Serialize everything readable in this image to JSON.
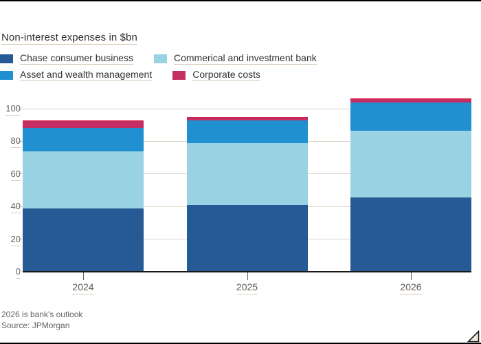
{
  "title": "Non-interest expenses in $bn",
  "legend": [
    {
      "label": "Chase consumer business",
      "color": "#255a94"
    },
    {
      "label": "Commerical and investment bank",
      "color": "#99d3e3"
    },
    {
      "label": "Asset and wealth management",
      "color": "#2190d0"
    },
    {
      "label": "Corporate costs",
      "color": "#c42e63"
    }
  ],
  "footnote": "2026 is bank's outlook",
  "source": "Source: JPMorgan",
  "chart_data": {
    "type": "bar",
    "stacked": true,
    "title": "Non-interest expenses in $bn",
    "categories": [
      "2024",
      "2025",
      "2026"
    ],
    "series": [
      {
        "name": "Chase consumer business",
        "color": "#255a94",
        "values": [
          39,
          41,
          45.5
        ]
      },
      {
        "name": "Commerical and investment bank",
        "color": "#99d3e3",
        "values": [
          35,
          38,
          41
        ]
      },
      {
        "name": "Asset and wealth management",
        "color": "#2190d0",
        "values": [
          14,
          14,
          17.5
        ]
      },
      {
        "name": "Corporate costs",
        "color": "#c42e63",
        "values": [
          5,
          2,
          2.5
        ]
      }
    ],
    "totals": [
      93,
      95,
      106.5
    ],
    "xlabel": "",
    "ylabel": "",
    "ylim": [
      0,
      100
    ],
    "yticks": [
      0,
      20,
      40,
      60,
      80,
      100
    ],
    "grid": true,
    "legend_position": "top",
    "note": "2026 is bank's outlook",
    "source": "Source: JPMorgan"
  },
  "colors": {
    "background": "#ffffff",
    "gridline": "#dcd0c3",
    "baseline": "#1a1814",
    "text_primary": "#33302e",
    "text_secondary": "#66605c",
    "corporate_top_stroke": "#d81e43",
    "frame_border": "#000000"
  }
}
